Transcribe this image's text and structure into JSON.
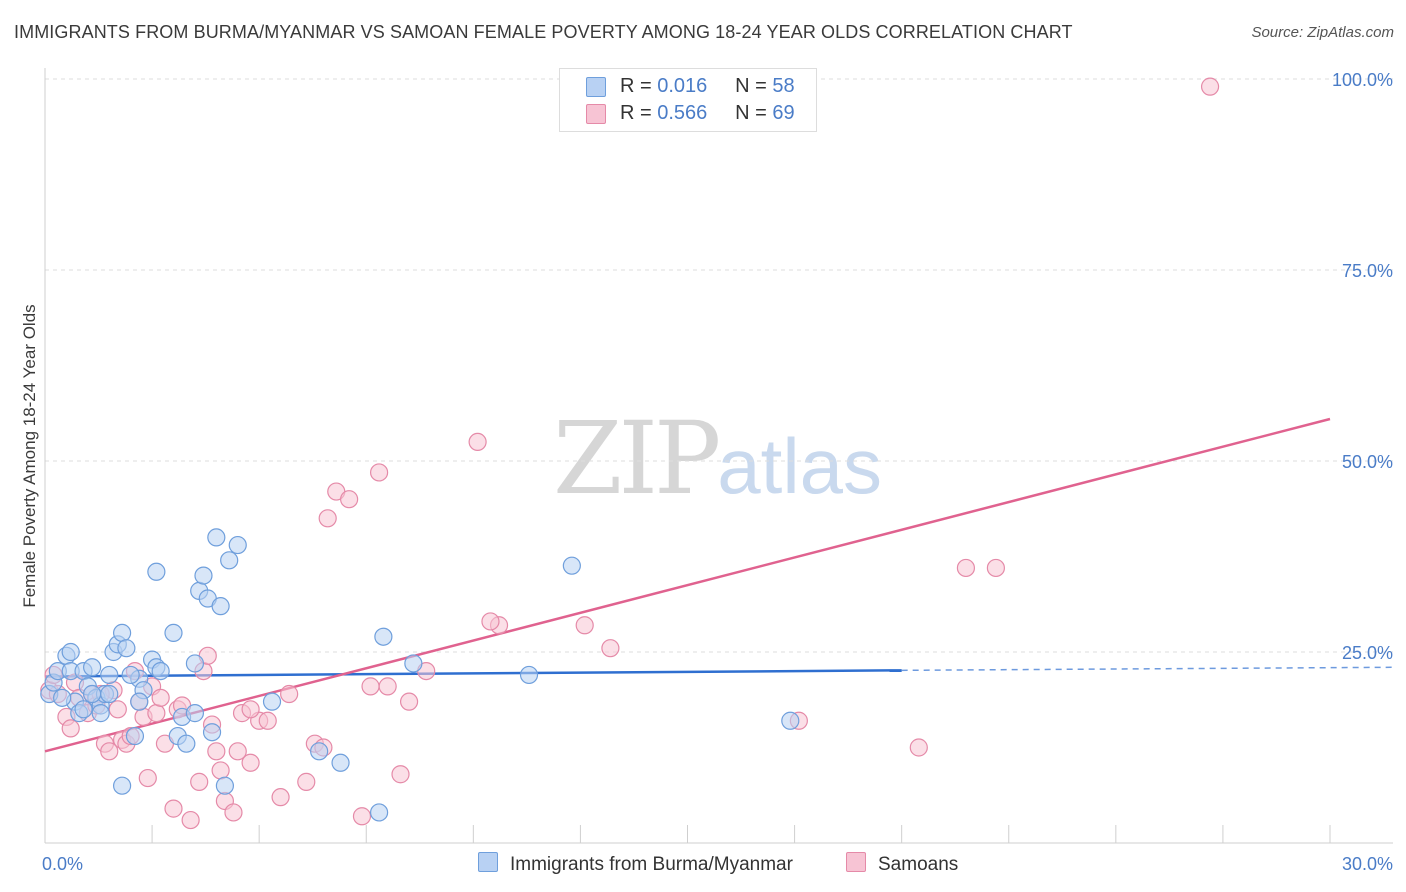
{
  "title": "IMMIGRANTS FROM BURMA/MYANMAR VS SAMOAN FEMALE POVERTY AMONG 18-24 YEAR OLDS CORRELATION CHART",
  "source": "Source: ZipAtlas.com",
  "watermark": {
    "zip": "ZIP",
    "atlas": "atlas"
  },
  "legend": {
    "series": [
      {
        "r_label": "R =",
        "r_value": "0.016",
        "n_label": "N =",
        "n_value": "58"
      },
      {
        "r_label": "R =",
        "r_value": "0.566",
        "n_label": "N =",
        "n_value": "69"
      }
    ]
  },
  "bottom_legend": [
    "Immigrants from Burma/Myanmar",
    "Samoans"
  ],
  "colors": {
    "blue_fill": "#b8d1f3",
    "blue_stroke": "#6f9fdc",
    "blue_line": "#2f6fd0",
    "pink_fill": "#f7c4d4",
    "pink_stroke": "#e58aa8",
    "pink_line": "#e0628f",
    "tick_text": "#4a7cc7",
    "grid": "#dddddd"
  },
  "chart_data": {
    "type": "scatter",
    "title": "IMMIGRANTS FROM BURMA/MYANMAR VS SAMOAN FEMALE POVERTY AMONG 18-24 YEAR OLDS CORRELATION CHART",
    "xlabel": "",
    "ylabel": "Female Poverty Among 18-24 Year Olds",
    "xlim": [
      0,
      30
    ],
    "ylim": [
      0,
      100
    ],
    "x_tick_labels": [
      "0.0%",
      "30.0%"
    ],
    "y_ticks": [
      25,
      50,
      75,
      100
    ],
    "y_tick_labels": [
      "25.0%",
      "50.0%",
      "75.0%",
      "100.0%"
    ],
    "series": [
      {
        "name": "Immigrants from Burma/Myanmar",
        "r": 0.016,
        "n": 58,
        "trend": {
          "x": [
            0,
            20
          ],
          "y": [
            21.8,
            22.6
          ],
          "dashed_to_x": 30,
          "dashed_to_y": 23.0
        },
        "points": [
          [
            0.1,
            19.5
          ],
          [
            0.2,
            21.0
          ],
          [
            0.3,
            22.5
          ],
          [
            0.5,
            24.5
          ],
          [
            0.6,
            22.5
          ],
          [
            0.7,
            18.5
          ],
          [
            0.8,
            17.0
          ],
          [
            0.9,
            22.5
          ],
          [
            1.0,
            20.5
          ],
          [
            1.1,
            23.0
          ],
          [
            1.2,
            19.0
          ],
          [
            1.3,
            18.0
          ],
          [
            1.4,
            19.5
          ],
          [
            1.5,
            22.0
          ],
          [
            1.6,
            25.0
          ],
          [
            1.7,
            26.0
          ],
          [
            1.8,
            27.5
          ],
          [
            1.9,
            25.5
          ],
          [
            2.1,
            14.0
          ],
          [
            2.2,
            21.5
          ],
          [
            2.3,
            20.0
          ],
          [
            2.5,
            24.0
          ],
          [
            2.6,
            23.0
          ],
          [
            2.7,
            22.5
          ],
          [
            3.0,
            27.5
          ],
          [
            3.1,
            14.0
          ],
          [
            3.2,
            16.5
          ],
          [
            3.3,
            13.0
          ],
          [
            3.5,
            17.0
          ],
          [
            3.6,
            33.0
          ],
          [
            3.7,
            35.0
          ],
          [
            3.8,
            32.0
          ],
          [
            3.9,
            14.5
          ],
          [
            4.1,
            31.0
          ],
          [
            4.2,
            7.5
          ],
          [
            4.3,
            37.0
          ],
          [
            4.5,
            39.0
          ],
          [
            4.0,
            40.0
          ],
          [
            2.6,
            35.5
          ],
          [
            5.3,
            18.5
          ],
          [
            6.4,
            12.0
          ],
          [
            6.9,
            10.5
          ],
          [
            7.8,
            4.0
          ],
          [
            7.9,
            27.0
          ],
          [
            8.6,
            23.5
          ],
          [
            11.3,
            22.0
          ],
          [
            12.3,
            36.3
          ],
          [
            17.4,
            16.0
          ],
          [
            1.3,
            17.0
          ],
          [
            0.4,
            19.0
          ],
          [
            1.1,
            19.5
          ],
          [
            2.2,
            18.5
          ],
          [
            3.5,
            23.5
          ],
          [
            2.0,
            22.0
          ],
          [
            0.9,
            17.5
          ],
          [
            1.8,
            7.5
          ],
          [
            0.6,
            25.0
          ],
          [
            1.5,
            19.5
          ]
        ]
      },
      {
        "name": "Samoans",
        "r": 0.566,
        "n": 69,
        "trend": {
          "x": [
            0,
            30
          ],
          "y": [
            12.0,
            55.5
          ]
        },
        "points": [
          [
            0.1,
            20.0
          ],
          [
            0.2,
            22.0
          ],
          [
            0.3,
            19.5
          ],
          [
            0.5,
            16.5
          ],
          [
            0.6,
            15.0
          ],
          [
            0.7,
            21.0
          ],
          [
            0.8,
            19.0
          ],
          [
            1.0,
            17.0
          ],
          [
            1.1,
            19.5
          ],
          [
            1.2,
            18.0
          ],
          [
            1.4,
            13.0
          ],
          [
            1.5,
            12.0
          ],
          [
            1.6,
            20.0
          ],
          [
            1.7,
            17.5
          ],
          [
            1.8,
            13.5
          ],
          [
            1.9,
            13.0
          ],
          [
            2.0,
            14.0
          ],
          [
            2.2,
            18.5
          ],
          [
            2.3,
            16.5
          ],
          [
            2.4,
            8.5
          ],
          [
            2.5,
            20.5
          ],
          [
            2.6,
            17.0
          ],
          [
            2.7,
            19.0
          ],
          [
            2.8,
            13.0
          ],
          [
            3.0,
            4.5
          ],
          [
            3.1,
            17.5
          ],
          [
            3.2,
            18.0
          ],
          [
            3.4,
            3.0
          ],
          [
            3.6,
            8.0
          ],
          [
            3.7,
            22.5
          ],
          [
            3.8,
            24.5
          ],
          [
            3.9,
            15.5
          ],
          [
            4.0,
            12.0
          ],
          [
            4.1,
            9.5
          ],
          [
            4.2,
            5.5
          ],
          [
            4.4,
            4.0
          ],
          [
            4.5,
            12.0
          ],
          [
            4.6,
            17.0
          ],
          [
            4.8,
            10.5
          ],
          [
            5.0,
            16.0
          ],
          [
            5.2,
            16.0
          ],
          [
            5.5,
            6.0
          ],
          [
            5.7,
            19.5
          ],
          [
            6.1,
            8.0
          ],
          [
            6.3,
            13.0
          ],
          [
            6.6,
            42.5
          ],
          [
            6.8,
            46.0
          ],
          [
            7.1,
            45.0
          ],
          [
            7.4,
            3.5
          ],
          [
            7.6,
            20.5
          ],
          [
            7.8,
            48.5
          ],
          [
            8.0,
            20.5
          ],
          [
            8.3,
            9.0
          ],
          [
            8.9,
            22.5
          ],
          [
            10.1,
            52.5
          ],
          [
            10.6,
            28.5
          ],
          [
            10.4,
            29.0
          ],
          [
            12.6,
            28.5
          ],
          [
            13.2,
            25.5
          ],
          [
            17.6,
            16.0
          ],
          [
            20.4,
            12.5
          ],
          [
            21.5,
            36.0
          ],
          [
            22.2,
            36.0
          ],
          [
            27.2,
            99.0
          ],
          [
            8.5,
            18.5
          ],
          [
            4.8,
            17.5
          ],
          [
            6.5,
            12.5
          ],
          [
            2.1,
            22.5
          ],
          [
            1.3,
            19.5
          ]
        ]
      }
    ]
  }
}
